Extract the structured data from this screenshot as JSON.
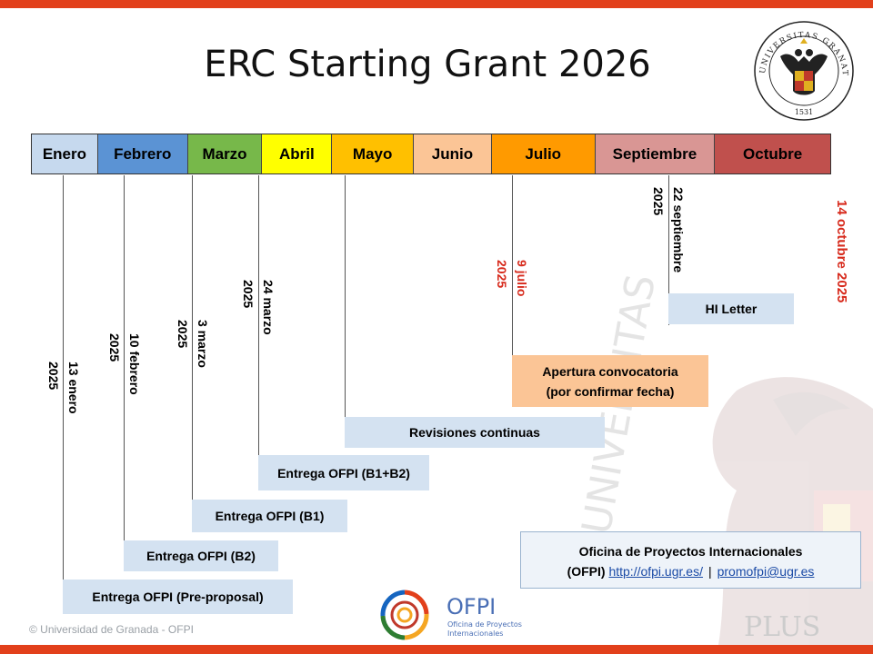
{
  "title": "ERC Starting Grant 2026",
  "months": [
    {
      "label": "Enero",
      "color": "#c6d9ee"
    },
    {
      "label": "Febrero",
      "color": "#5b93d4"
    },
    {
      "label": "Marzo",
      "color": "#77b84a"
    },
    {
      "label": "Abril",
      "color": "#ffff00"
    },
    {
      "label": "Mayo",
      "color": "#ffc000"
    },
    {
      "label": "Junio",
      "color": "#fbc596"
    },
    {
      "label": "Julio",
      "color": "#ff9a00"
    },
    {
      "label": "Septiembre",
      "color": "#d99694"
    },
    {
      "label": "Octubre",
      "color": "#c0504d"
    }
  ],
  "dates": {
    "d1": "13 enero\n2025",
    "d2": "10 febrero\n2025",
    "d3": "3 marzo\n2025",
    "d4": "24 marzo\n2025",
    "d5": "9 julio\n2025",
    "d6": "22 septiembre\n2025",
    "d7": "14 octubre 2025"
  },
  "boxes": {
    "hi_letter": "HI Letter",
    "apertura_line1": "Apertura convocatoria",
    "apertura_line2": "(por confirmar fecha)",
    "revisiones": "Revisiones continuas",
    "b1b2": "Entrega OFPI (B1+B2)",
    "b1": "Entrega OFPI (B1)",
    "b2": "Entrega OFPI (B2)",
    "preproposal": "Entrega OFPI (Pre-proposal)"
  },
  "contact": {
    "line1": "Oficina de Proyectos Internacionales",
    "prefix": "(OFPI)",
    "url": "http://ofpi.ugr.es/",
    "separator": "|",
    "email": "promofpi@ugr.es"
  },
  "logo": {
    "name": "OFPI",
    "sub1": "Oficina de Proyectos",
    "sub2": "Internacionales"
  },
  "seal": {
    "text": "UNIVERSITAS GRANATENSIS",
    "year": "1531"
  },
  "watermark_text": "UNIVERSITAS",
  "watermark_plus": "PLUS",
  "copyright": "© Universidad de Granada - OFPI",
  "colors": {
    "accent_bar": "#e2401b",
    "red_text": "#d72a1c",
    "box_blue": "#d4e2f1",
    "box_orange": "#fbc596"
  }
}
